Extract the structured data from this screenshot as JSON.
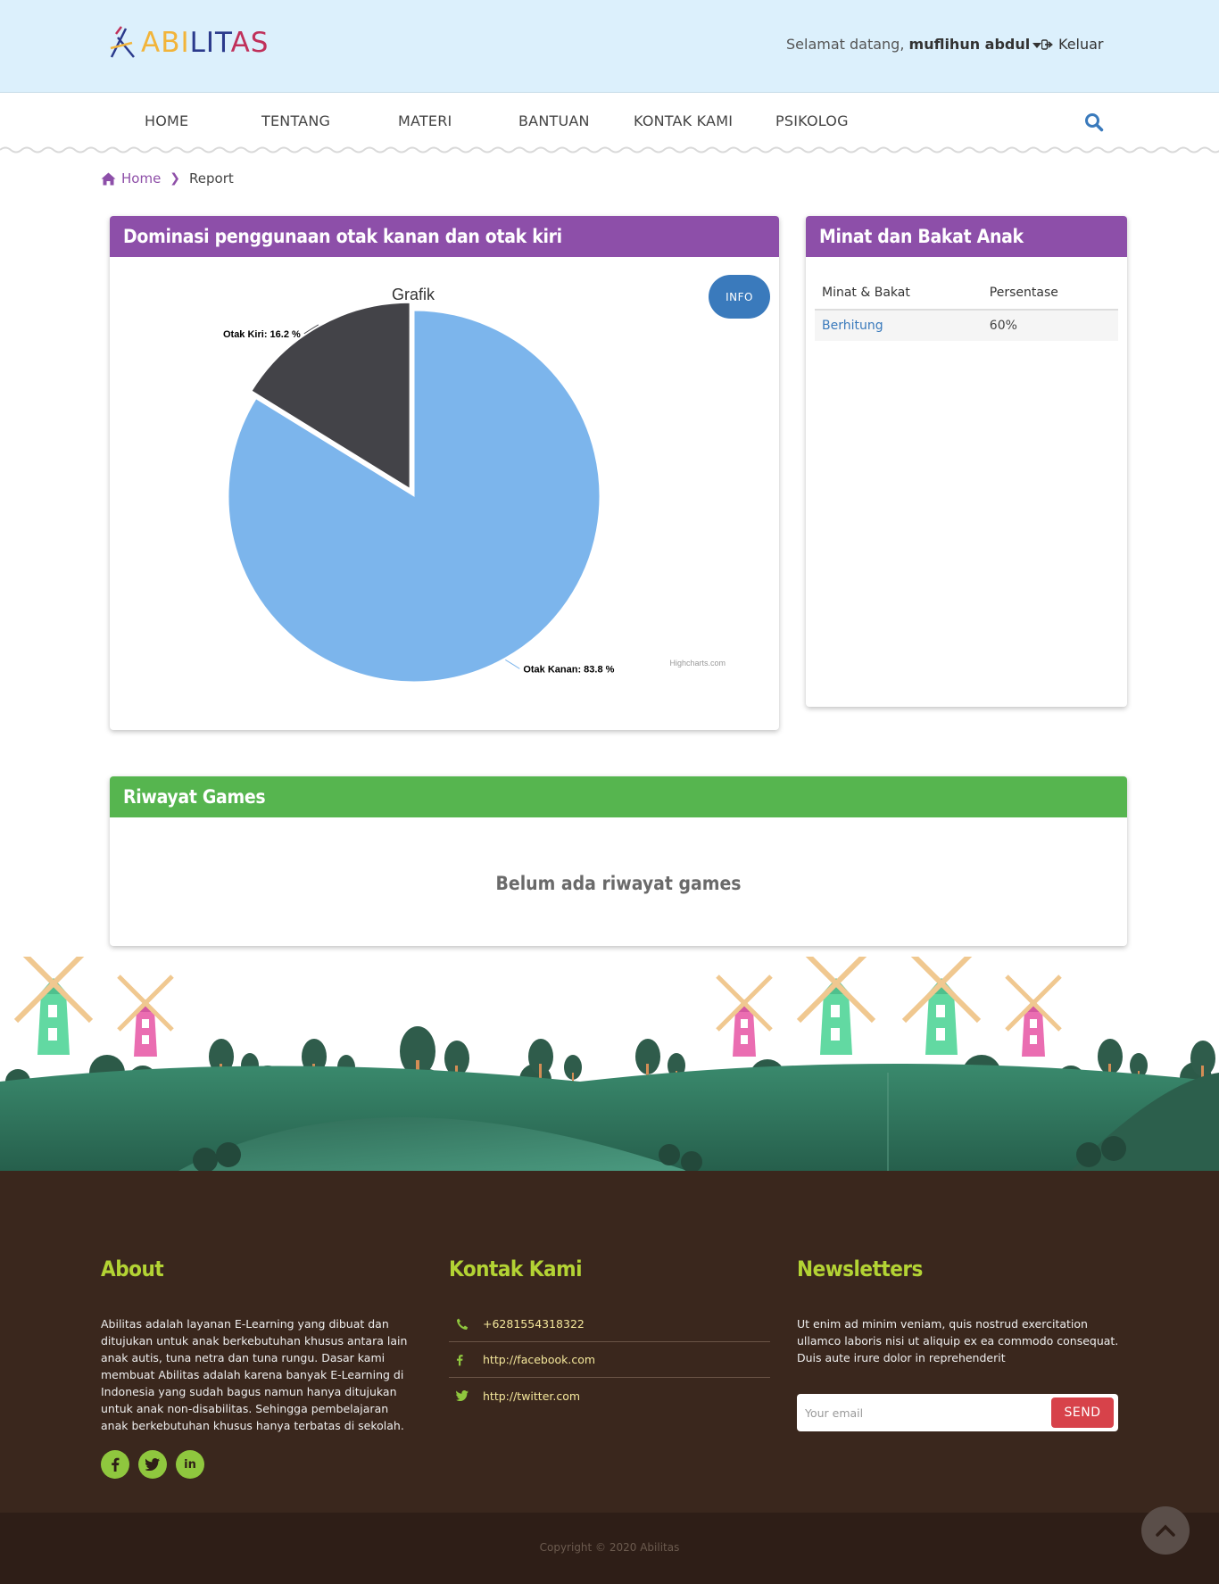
{
  "header": {
    "logo_text_1": "ABI",
    "logo_text_2": "LIT",
    "logo_text_3": "AS",
    "welcome_prefix": "Selamat datang,",
    "username": "muflihun abdul",
    "logout_label": "Keluar"
  },
  "nav": {
    "items": [
      "HOME",
      "TENTANG",
      "MATERI",
      "BANTUAN",
      "KONTAK KAMI",
      "PSIKOLOG"
    ]
  },
  "breadcrumb": {
    "home": "Home",
    "current": "Report"
  },
  "chart_panel": {
    "title": "Dominasi penggunaan otak kanan dan otak kiri",
    "info_label": "INFO"
  },
  "chart_data": {
    "type": "pie",
    "title": "Grafik",
    "slices": [
      {
        "name": "Otak Kanan",
        "value": 83.8,
        "label": "Otak Kanan: 83.8 %",
        "color": "#7cb5ec"
      },
      {
        "name": "Otak Kiri",
        "value": 16.2,
        "label": "Otak Kiri: 16.2 %",
        "color": "#434348",
        "sliced": true
      }
    ],
    "credits": "Highcharts.com"
  },
  "minat_panel": {
    "title": "Minat dan Bakat Anak",
    "columns": [
      "Minat & Bakat",
      "Persentase"
    ],
    "rows": [
      [
        "Berhitung",
        "60%"
      ]
    ]
  },
  "games_panel": {
    "title": "Riwayat Games",
    "empty_message": "Belum ada riwayat games"
  },
  "footer": {
    "about_title": "About",
    "about_text": "Abilitas adalah layanan E-Learning yang dibuat dan ditujukan untuk anak berkebutuhan khusus antara lain anak autis, tuna netra dan tuna rungu. Dasar kami membuat Abilitas adalah karena banyak E-Learning di Indonesia yang sudah bagus namun hanya ditujukan untuk anak non-disabilitas. Sehingga pembelajaran anak berkebutuhan khusus hanya terbatas di sekolah.",
    "contact_title": "Kontak Kami",
    "contacts": [
      "+6281554318322",
      "http://facebook.com",
      "http://twitter.com"
    ],
    "newsletter_title": "Newsletters",
    "newsletter_text": "Ut enim ad minim veniam, quis nostrud exercitation ullamco laboris nisi ut aliquip ex ea commodo consequat. Duis aute irure dolor in reprehenderit",
    "email_placeholder": "Your email",
    "send_label": "SEND",
    "copyright": "Copyright © 2020 Abilitas"
  },
  "colors": {
    "purple": "#8d4fa9",
    "green": "#56b54f",
    "footer_bg": "#3a271d",
    "accent_green": "#b3d334"
  }
}
